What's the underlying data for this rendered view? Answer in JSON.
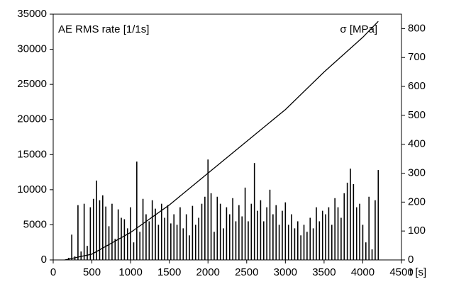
{
  "chart_data": {
    "type": "bar_line",
    "y_label": "AE RMS rate [1/1s]",
    "y2_label": "σ [MPa]",
    "x_label": "t [s]",
    "xlim": [
      0,
      4500
    ],
    "xticks": [
      0,
      500,
      1000,
      1500,
      2000,
      2500,
      3000,
      3500,
      4000,
      4500
    ],
    "ylim": [
      0,
      35000
    ],
    "yticks": [
      0,
      5000,
      10000,
      15000,
      20000,
      25000,
      30000,
      35000
    ],
    "y2lim": [
      0,
      850
    ],
    "y2ticks": [
      0,
      100,
      200,
      300,
      400,
      500,
      600,
      700,
      800
    ],
    "series": [
      {
        "type": "bar",
        "color": "#000000",
        "x": [
          200,
          240,
          280,
          320,
          360,
          400,
          440,
          480,
          520,
          560,
          600,
          640,
          680,
          720,
          760,
          800,
          840,
          880,
          920,
          960,
          1000,
          1040,
          1080,
          1120,
          1160,
          1200,
          1240,
          1280,
          1320,
          1360,
          1400,
          1440,
          1480,
          1520,
          1560,
          1600,
          1640,
          1680,
          1720,
          1760,
          1800,
          1840,
          1880,
          1920,
          1960,
          2000,
          2040,
          2080,
          2120,
          2160,
          2200,
          2240,
          2280,
          2320,
          2360,
          2400,
          2440,
          2480,
          2520,
          2560,
          2600,
          2640,
          2680,
          2720,
          2760,
          2800,
          2840,
          2880,
          2920,
          2960,
          3000,
          3040,
          3080,
          3120,
          3160,
          3200,
          3240,
          3280,
          3320,
          3360,
          3400,
          3440,
          3480,
          3520,
          3560,
          3600,
          3640,
          3680,
          3720,
          3760,
          3800,
          3840,
          3880,
          3920,
          3960,
          4000,
          4040,
          4080,
          4120,
          4160,
          4200
        ],
        "values": [
          300,
          3600,
          500,
          7800,
          1200,
          8000,
          2000,
          7500,
          8700,
          11300,
          8500,
          9200,
          7600,
          4800,
          8000,
          3000,
          7200,
          6000,
          5800,
          4500,
          7500,
          2500,
          14000,
          4000,
          8700,
          6500,
          5500,
          8500,
          7300,
          5000,
          8000,
          6000,
          7800,
          5200,
          6500,
          5000,
          7500,
          4500,
          6500,
          3500,
          7700,
          5000,
          6000,
          8000,
          9000,
          14300,
          9500,
          4000,
          9000,
          8000,
          4500,
          7500,
          6500,
          8800,
          5500,
          7800,
          6200,
          10300,
          5500,
          8000,
          13800,
          7000,
          8500,
          5500,
          7500,
          10000,
          6500,
          7800,
          5000,
          7000,
          8200,
          5000,
          6500,
          4500,
          5500,
          3500,
          5000,
          4000,
          6000,
          4500,
          7500,
          5500,
          7000,
          6500,
          7500,
          5000,
          8800,
          7500,
          6000,
          9500,
          11000,
          13000,
          10800,
          7500,
          8000,
          5000,
          2500,
          9000,
          1500,
          8500,
          12800
        ]
      },
      {
        "type": "line",
        "axis": "y2",
        "color": "#000000",
        "x": [
          150,
          500,
          1000,
          1500,
          2000,
          2500,
          3000,
          3500,
          4000,
          4200
        ],
        "values": [
          0,
          20,
          95,
          190,
          300,
          410,
          520,
          650,
          770,
          825
        ]
      }
    ]
  }
}
